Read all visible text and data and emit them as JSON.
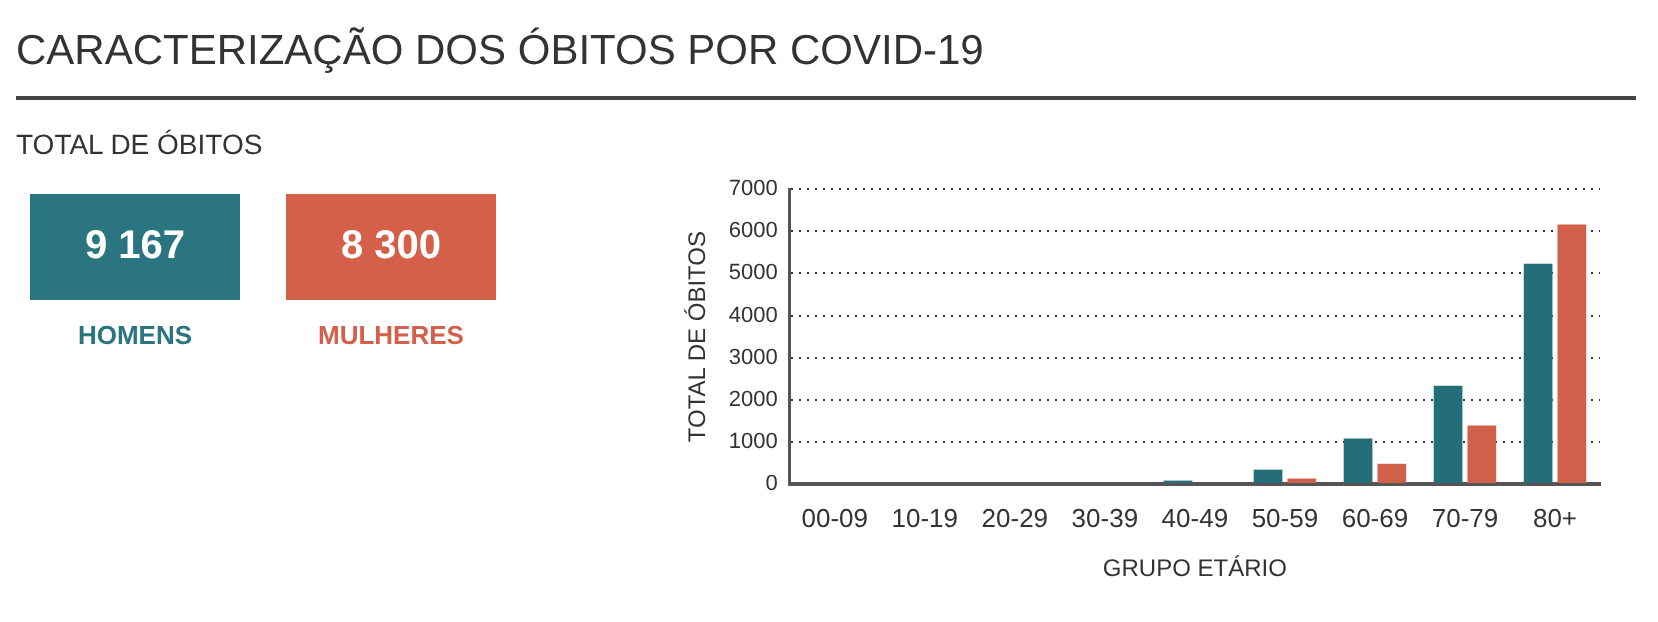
{
  "chart_data": [
    {
      "type": "other",
      "title": "CARACTERIZAÇÃO DOS ÓBITOS POR COVID-19",
      "subtitle": "TOTAL DE ÓBITOS",
      "categories": [
        "HOMENS",
        "MULHERES"
      ],
      "value_labels": [
        "9 167",
        "8 300"
      ],
      "colors": [
        "#2a7580",
        "#d4604a"
      ]
    },
    {
      "type": "bar",
      "xlabel": "GRUPO ETÁRIO",
      "ylabel": "TOTAL DE ÓBITOS",
      "categories": [
        "00-09",
        "10-19",
        "20-29",
        "30-39",
        "40-49",
        "50-59",
        "60-69",
        "70-79",
        "80+"
      ],
      "series": [
        {
          "color": "#236e78",
          "values": [
            0,
            0,
            0,
            null,
            80,
            340,
            1080,
            2330,
            5230
          ]
        },
        {
          "color": "#d0604a",
          "values": [
            0,
            0,
            0,
            0,
            null,
            130,
            480,
            1390,
            6160
          ]
        }
      ],
      "ylim": [
        0,
        7000
      ],
      "yticks": [
        0,
        1000,
        2000,
        3000,
        4000,
        5000,
        6000,
        7000
      ],
      "grid": "y",
      "legend": false
    }
  ]
}
